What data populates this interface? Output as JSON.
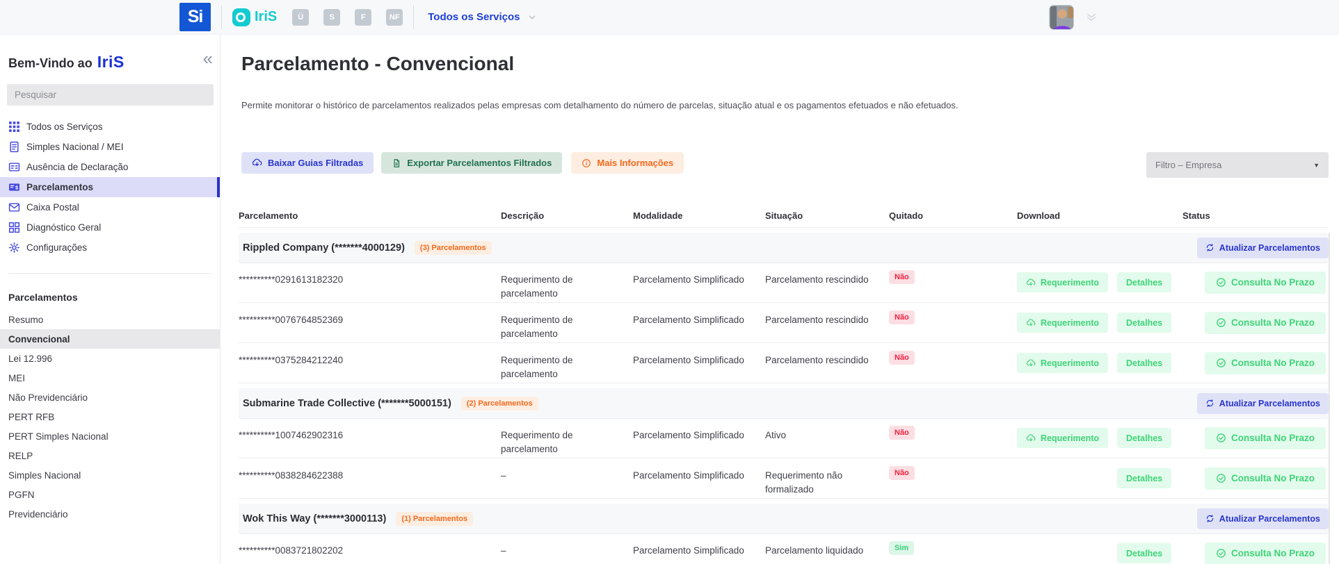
{
  "topbar": {
    "si_logo": "Si",
    "iris_logo": "IriS",
    "app_icons": [
      "Ü",
      "S",
      "F",
      "NF"
    ],
    "services_label": "Todos os Serviços"
  },
  "sidebar": {
    "welcome_prefix": "Bem-Vindo ao",
    "welcome_logo": "IriS",
    "search_placeholder": "Pesquisar",
    "menu": [
      {
        "label": "Todos os Serviços",
        "icon": "grid",
        "active": false
      },
      {
        "label": "Simples Nacional / MEI",
        "icon": "doc",
        "active": false
      },
      {
        "label": "Ausência de Declaração",
        "icon": "card",
        "active": false
      },
      {
        "label": "Parcelamentos",
        "icon": "money",
        "active": true
      },
      {
        "label": "Caixa Postal",
        "icon": "mail",
        "active": false
      },
      {
        "label": "Diagnóstico Geral",
        "icon": "diag",
        "active": false
      },
      {
        "label": "Configurações",
        "icon": "gear",
        "active": false
      }
    ],
    "section_title": "Parcelamentos",
    "submenu": [
      {
        "label": "Resumo",
        "active": false
      },
      {
        "label": "Convencional",
        "active": true
      },
      {
        "label": "Lei 12.996",
        "active": false
      },
      {
        "label": "MEI",
        "active": false
      },
      {
        "label": "Não Previdenciário",
        "active": false
      },
      {
        "label": "PERT RFB",
        "active": false
      },
      {
        "label": "PERT Simples Nacional",
        "active": false
      },
      {
        "label": "RELP",
        "active": false
      },
      {
        "label": "Simples Nacional",
        "active": false
      },
      {
        "label": "PGFN",
        "active": false
      },
      {
        "label": "Previdenciário",
        "active": false
      }
    ]
  },
  "main": {
    "title": "Parcelamento - Convencional",
    "description": "Permite monitorar o histórico de parcelamentos realizados pelas empresas com detalhamento do número de parcelas, situação atual e os pagamentos efetuados e não efetuados.",
    "toolbar": {
      "download_guides": "Baixar Guias Filtradas",
      "export": "Exportar Parcelamentos Filtrados",
      "more_info": "Mais Informações",
      "filter_placeholder": "Filtro – Empresa"
    },
    "table": {
      "headers": [
        "Parcelamento",
        "Descrição",
        "Modalidade",
        "Situação",
        "Quitado",
        "Download",
        "Status"
      ],
      "labels": {
        "update": "Atualizar Parcelamentos",
        "requerimento": "Requerimento",
        "detalhes": "Detalhes"
      },
      "groups": [
        {
          "company": "Rippled Company (*******4000129)",
          "count_badge": "(3) Parcelamentos",
          "rows": [
            {
              "parcelamento": "**********0291613182320",
              "descricao": "Requerimento de parcelamento",
              "modalidade": "Parcelamento Simplificado",
              "situacao": "Parcelamento rescindido",
              "quitado": "Não",
              "quitado_positive": false,
              "has_requerimento": true,
              "status": "Consulta No Prazo"
            },
            {
              "parcelamento": "**********0076764852369",
              "descricao": "Requerimento de parcelamento",
              "modalidade": "Parcelamento Simplificado",
              "situacao": "Parcelamento rescindido",
              "quitado": "Não",
              "quitado_positive": false,
              "has_requerimento": true,
              "status": "Consulta No Prazo"
            },
            {
              "parcelamento": "**********0375284212240",
              "descricao": "Requerimento de parcelamento",
              "modalidade": "Parcelamento Simplificado",
              "situacao": "Parcelamento rescindido",
              "quitado": "Não",
              "quitado_positive": false,
              "has_requerimento": true,
              "status": "Consulta No Prazo"
            }
          ]
        },
        {
          "company": "Submarine Trade Collective (*******5000151)",
          "count_badge": "(2) Parcelamentos",
          "rows": [
            {
              "parcelamento": "**********1007462902316",
              "descricao": "Requerimento de parcelamento",
              "modalidade": "Parcelamento Simplificado",
              "situacao": "Ativo",
              "quitado": "Não",
              "quitado_positive": false,
              "has_requerimento": true,
              "status": "Consulta No Prazo"
            },
            {
              "parcelamento": "**********0838284622388",
              "descricao": "–",
              "modalidade": "Parcelamento Simplificado",
              "situacao": "Requerimento não formalizado",
              "quitado": "Não",
              "quitado_positive": false,
              "has_requerimento": false,
              "status": "Consulta No Prazo"
            }
          ]
        },
        {
          "company": "Wok This Way (*******3000113)",
          "count_badge": "(1) Parcelamentos",
          "rows": [
            {
              "parcelamento": "**********0083721802202",
              "descricao": "–",
              "modalidade": "Parcelamento Simplificado",
              "situacao": "Parcelamento liquidado",
              "quitado": "Sim",
              "quitado_positive": true,
              "has_requerimento": false,
              "status": "Consulta No Prazo"
            }
          ]
        }
      ]
    }
  },
  "colors": {
    "primary_blue": "#2834cf",
    "teal": "#14cbd1",
    "orange": "#f4691e",
    "mint_green": "#3fd478",
    "dark_green": "#20714e",
    "red": "#f0223f",
    "lavender_bg": "#dfe2f7",
    "mint_bg": "#e2fbec"
  }
}
